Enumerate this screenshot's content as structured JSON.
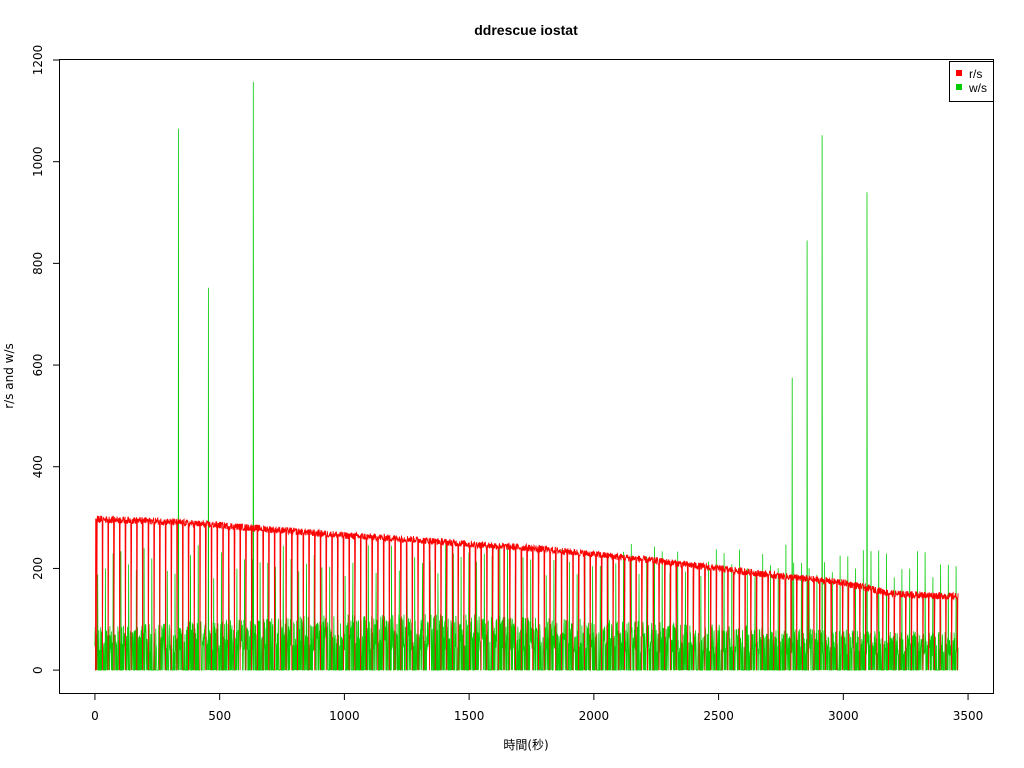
{
  "chart_data": {
    "type": "line",
    "title": "ddrescue iostat",
    "xlabel": "時間(秒)",
    "ylabel": "r/s and w/s",
    "xlim": [
      -140,
      3600
    ],
    "ylim": [
      -45,
      1200
    ],
    "xticks": [
      "0",
      "500",
      "1000",
      "1500",
      "2000",
      "2500",
      "3000",
      "3500"
    ],
    "yticks": [
      "0",
      "200",
      "400",
      "600",
      "800",
      "1000",
      "1200"
    ],
    "grid": false,
    "legend_position": "top-right",
    "series": [
      {
        "name": "r/s",
        "color": "#ff0000",
        "x": [
          0,
          250,
          500,
          750,
          1000,
          1250,
          1500,
          1750,
          2000,
          2250,
          2500,
          2750,
          3000,
          3200,
          3460
        ],
        "values": [
          297,
          293,
          285,
          275,
          265,
          258,
          248,
          240,
          228,
          215,
          200,
          185,
          172,
          150,
          145
        ]
      },
      {
        "name": "w/s",
        "color": "#00cc00",
        "x": [
          0,
          500,
          1000,
          1500,
          2000,
          2500,
          3000,
          3460
        ],
        "values": [
          85,
          100,
          110,
          110,
          100,
          90,
          80,
          75
        ],
        "spikes": [
          {
            "x": 335,
            "y": 1065
          },
          {
            "x": 455,
            "y": 752
          },
          {
            "x": 635,
            "y": 1157
          },
          {
            "x": 2795,
            "y": 575
          },
          {
            "x": 2855,
            "y": 845
          },
          {
            "x": 2915,
            "y": 1052
          },
          {
            "x": 3095,
            "y": 940
          }
        ]
      }
    ]
  }
}
